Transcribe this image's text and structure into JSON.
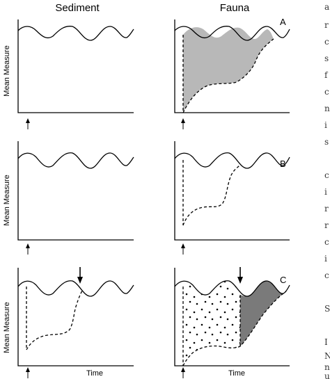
{
  "figure": {
    "column_titles": {
      "left": "Sediment",
      "right": "Fauna"
    },
    "y_axis_label": "Mean Measure",
    "x_axis_label": "Time",
    "panel_labels": [
      "A",
      "B",
      "C"
    ],
    "margin_text": [
      "a",
      "r",
      "c",
      "s",
      "f",
      "c",
      "n",
      "i",
      "s",
      "",
      "c",
      "i",
      "r",
      "r",
      "c",
      "i",
      "c",
      "",
      "S",
      "",
      "I",
      "N",
      "n",
      "u"
    ],
    "colors": {
      "line": "#000000",
      "recovery_fill": "#b8b8b8",
      "late_recovery_fill": "#7a7a7a",
      "stipple_dot": "#000000"
    }
  }
}
